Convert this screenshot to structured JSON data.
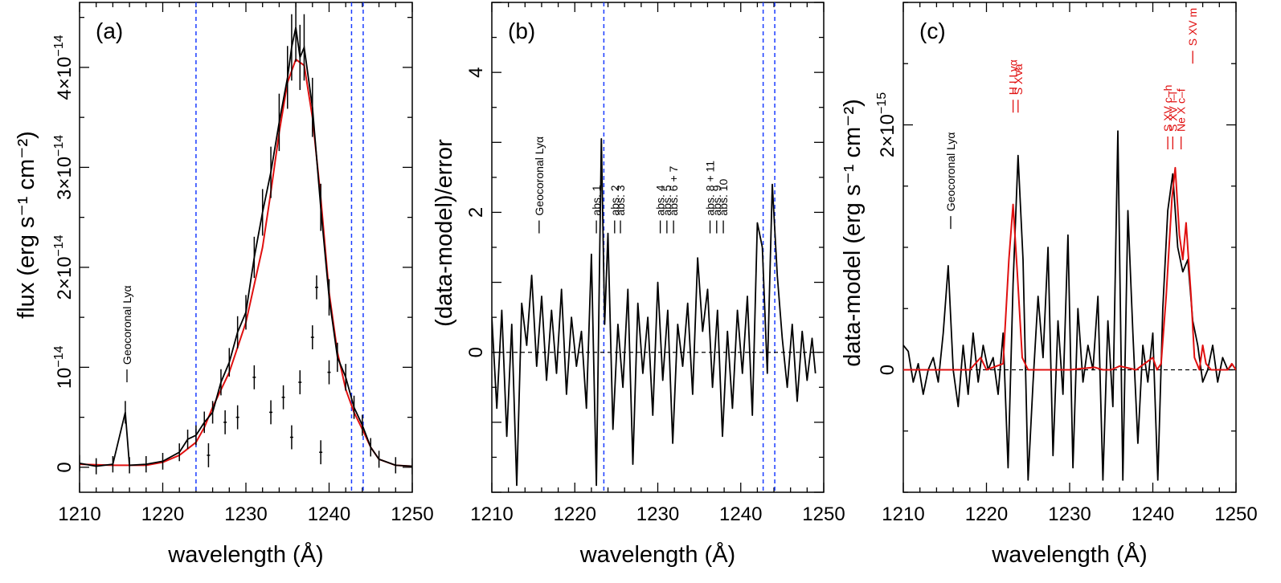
{
  "colors": {
    "data": "#000000",
    "model": "#e01010",
    "marker": "#1a3cff"
  },
  "chart_data": [
    {
      "type": "line",
      "panel": "(a)",
      "xlabel": "wavelength (Å)",
      "ylabel": "flux (erg s⁻¹ cm⁻²)",
      "xlim": [
        1210,
        1250
      ],
      "ylim": [
        -0.25,
        4.65
      ],
      "y_unit_note": "values in units of 1e-14",
      "xticks": [
        1210,
        1220,
        1230,
        1240,
        1250
      ],
      "yticks": [
        {
          "value": 0,
          "mant": "0",
          "exp": ""
        },
        {
          "value": 1,
          "mant": "10",
          "exp": "−14"
        },
        {
          "value": 2,
          "mant": "2×10",
          "exp": "−14"
        },
        {
          "value": 3,
          "mant": "3×10",
          "exp": "−14"
        },
        {
          "value": 4,
          "mant": "4×10",
          "exp": "−14"
        }
      ],
      "dashed_x": [
        1224.0,
        1242.7,
        1244.1
      ],
      "series": [
        {
          "name": "model",
          "color": "#e01010",
          "x": [
            1210,
            1214,
            1218,
            1220,
            1222,
            1224,
            1225,
            1226,
            1228,
            1230,
            1232,
            1233,
            1234,
            1235,
            1236,
            1237,
            1238,
            1239,
            1240,
            1241,
            1242,
            1243,
            1244,
            1245,
            1246,
            1248,
            1250
          ],
          "y": [
            0.03,
            0.02,
            0.02,
            0.05,
            0.12,
            0.25,
            0.4,
            0.6,
            0.95,
            1.45,
            2.2,
            2.75,
            3.35,
            3.85,
            4.08,
            4.02,
            3.5,
            2.7,
            1.75,
            1.15,
            0.78,
            0.55,
            0.38,
            0.2,
            0.08,
            0.02,
            0.01
          ]
        },
        {
          "name": "data",
          "color": "#000000",
          "x": [
            1210,
            1212,
            1214,
            1215.5,
            1216,
            1218,
            1220,
            1222,
            1223,
            1224,
            1225,
            1226,
            1227,
            1228,
            1229,
            1230,
            1231,
            1232,
            1233,
            1234,
            1235,
            1235.5,
            1236,
            1236.5,
            1237,
            1238,
            1239,
            1240,
            1241,
            1242,
            1243,
            1244,
            1245,
            1246,
            1248,
            1250
          ],
          "y": [
            0.04,
            0.01,
            0.03,
            0.55,
            0.02,
            0.03,
            0.06,
            0.15,
            0.28,
            0.32,
            0.45,
            0.55,
            0.85,
            1.05,
            1.35,
            1.55,
            2.1,
            2.55,
            2.95,
            3.45,
            3.9,
            4.2,
            4.4,
            4.1,
            4.2,
            3.6,
            2.6,
            1.7,
            1.1,
            0.9,
            0.6,
            0.42,
            0.2,
            0.08,
            0.02,
            0.01
          ]
        }
      ],
      "outliers": [
        {
          "x": 1225.5,
          "y": 0.12
        },
        {
          "x": 1227.5,
          "y": 0.45
        },
        {
          "x": 1229,
          "y": 0.5
        },
        {
          "x": 1231,
          "y": 0.9
        },
        {
          "x": 1233,
          "y": 0.55
        },
        {
          "x": 1234.5,
          "y": 0.7
        },
        {
          "x": 1235.5,
          "y": 0.3
        },
        {
          "x": 1236.5,
          "y": 0.85
        },
        {
          "x": 1238,
          "y": 1.3
        },
        {
          "x": 1238.5,
          "y": 1.8
        },
        {
          "x": 1239,
          "y": 0.15
        },
        {
          "x": 1240,
          "y": 0.95
        }
      ],
      "annotations": [
        {
          "x": 1215.7,
          "y": 0.85,
          "text": "Geocoronal Lyα"
        }
      ]
    },
    {
      "type": "line",
      "panel": "(b)",
      "xlabel": "wavelength (Å)",
      "ylabel": "(data-model)/error",
      "xlim": [
        1210,
        1250
      ],
      "ylim": [
        -2,
        5
      ],
      "xticks": [
        1210,
        1220,
        1230,
        1240,
        1250
      ],
      "yticks": [
        0,
        2,
        4
      ],
      "zero_line": true,
      "dashed_x": [
        1223.5,
        1242.7,
        1244.1
      ],
      "series": [
        {
          "name": "residual",
          "color": "#000000",
          "x": [
            1210,
            1210.6,
            1211.2,
            1211.8,
            1212.4,
            1213,
            1213.6,
            1214.2,
            1214.8,
            1215.4,
            1216,
            1216.6,
            1217.2,
            1217.8,
            1218.4,
            1219,
            1219.6,
            1220.2,
            1220.8,
            1221.4,
            1222,
            1222.6,
            1223.2,
            1223.6,
            1224,
            1224.6,
            1225.2,
            1225.8,
            1226.4,
            1227,
            1227.6,
            1228.2,
            1228.8,
            1229.4,
            1230,
            1230.6,
            1231.2,
            1231.8,
            1232.4,
            1233,
            1233.6,
            1234.2,
            1234.8,
            1235.4,
            1236,
            1236.6,
            1237.2,
            1237.8,
            1238.4,
            1239,
            1239.6,
            1240.2,
            1240.8,
            1241.4,
            1242,
            1242.6,
            1243.2,
            1243.8,
            1244.4,
            1245,
            1245.6,
            1246.2,
            1246.8,
            1247.4,
            1248,
            1248.6,
            1249
          ],
          "y": [
            0.5,
            -0.8,
            0.6,
            -1.2,
            0.4,
            -1.9,
            0.7,
            0.1,
            1.1,
            -0.2,
            0.8,
            -0.4,
            0.6,
            -0.3,
            0.9,
            -0.6,
            0.5,
            -0.2,
            0.3,
            -0.8,
            1.4,
            -1.9,
            3.05,
            0.4,
            1.7,
            -1.1,
            0.4,
            -0.5,
            0.9,
            -1.6,
            0.7,
            -0.3,
            0.5,
            -0.9,
            1.0,
            -0.4,
            0.6,
            -1.3,
            0.4,
            -0.2,
            0.7,
            -0.6,
            1.35,
            0.3,
            0.9,
            -0.5,
            0.6,
            -1.2,
            0.3,
            -0.8,
            0.6,
            -0.3,
            0.8,
            -0.9,
            1.85,
            1.5,
            -0.3,
            2.4,
            1.1,
            0.2,
            -0.5,
            0.4,
            -0.7,
            0.3,
            -0.4,
            0.2,
            -0.3
          ]
        }
      ],
      "annotations": [
        {
          "x": 1215.7,
          "y": 1.7,
          "text": "Geocoronal Lyα"
        },
        {
          "x": 1222.6,
          "y": 1.7,
          "text": "abs. 1"
        },
        {
          "x": 1224.8,
          "y": 1.7,
          "text": "abs. 2"
        },
        {
          "x": 1225.5,
          "y": 1.7,
          "text": "abs. 3"
        },
        {
          "x": 1230.3,
          "y": 1.7,
          "text": "abs. 4"
        },
        {
          "x": 1231.1,
          "y": 1.7,
          "text": "abs. 5"
        },
        {
          "x": 1231.9,
          "y": 1.7,
          "text": "abs. 6 + 7"
        },
        {
          "x": 1236.3,
          "y": 1.7,
          "text": "abs. 8 + 11"
        },
        {
          "x": 1237.1,
          "y": 1.7,
          "text": "abs. 9"
        },
        {
          "x": 1237.9,
          "y": 1.7,
          "text": "abs. 10"
        }
      ]
    },
    {
      "type": "line",
      "panel": "(c)",
      "xlabel": "wavelength (Å)",
      "ylabel": "data-model (erg s⁻¹ cm⁻²)",
      "xlim": [
        1210,
        1250
      ],
      "ylim": [
        -1.0,
        3.0
      ],
      "y_unit_note": "values in units of 1e-15",
      "xticks": [
        1210,
        1220,
        1230,
        1240,
        1250
      ],
      "yticks": [
        {
          "value": 0,
          "mant": "0",
          "exp": ""
        },
        {
          "value": 2,
          "mant": "2×10",
          "exp": "−15"
        }
      ],
      "zero_line": true,
      "series": [
        {
          "name": "data",
          "color": "#000000",
          "x": [
            1210,
            1210.6,
            1211.2,
            1211.8,
            1212.4,
            1213,
            1213.6,
            1214.2,
            1214.8,
            1215.4,
            1216,
            1216.6,
            1217.2,
            1217.8,
            1218.4,
            1219,
            1219.6,
            1220.2,
            1220.8,
            1221.4,
            1222,
            1222.6,
            1223.2,
            1223.8,
            1224.4,
            1225,
            1225.6,
            1226.2,
            1226.8,
            1227.4,
            1228,
            1228.6,
            1229.2,
            1229.8,
            1230.4,
            1231,
            1231.6,
            1232.2,
            1232.8,
            1233.4,
            1234,
            1234.6,
            1235.2,
            1235.8,
            1236.4,
            1237,
            1237.6,
            1238.2,
            1238.8,
            1239.4,
            1240,
            1240.6,
            1241.2,
            1241.8,
            1242.4,
            1243,
            1243.6,
            1244.2,
            1244.8,
            1245.4,
            1246,
            1246.6,
            1247.2,
            1247.8,
            1248.4,
            1249,
            1249.6
          ],
          "y": [
            0.2,
            0.15,
            -0.1,
            0.05,
            -0.2,
            0.0,
            0.1,
            -0.1,
            0.3,
            0.85,
            0.0,
            -0.3,
            0.2,
            -0.2,
            0.3,
            -0.1,
            0.2,
            0.0,
            0.1,
            -0.2,
            0.3,
            -0.8,
            0.7,
            1.75,
            0.9,
            -0.9,
            -0.1,
            0.6,
            0.1,
            1.0,
            -0.7,
            0.4,
            -0.2,
            1.1,
            -0.8,
            0.5,
            -0.1,
            0.2,
            0.0,
            0.6,
            -0.9,
            0.4,
            -0.3,
            1.95,
            -0.9,
            1.3,
            0.3,
            -0.6,
            0.2,
            -0.1,
            0.3,
            -0.9,
            0.5,
            1.3,
            1.6,
            1.0,
            0.8,
            0.9,
            0.4,
            0.2,
            -0.1,
            0.0,
            0.2,
            -0.1,
            0.1,
            0.0,
            0.05
          ]
        },
        {
          "name": "model",
          "color": "#e01010",
          "x": [
            1210,
            1218,
            1219.3,
            1220,
            1222,
            1222.7,
            1223.2,
            1223.7,
            1224.3,
            1225,
            1230,
            1233,
            1234,
            1235,
            1236,
            1238,
            1240,
            1240.5,
            1241,
            1241.6,
            1242.3,
            1242.7,
            1243.2,
            1243.6,
            1244,
            1244.6,
            1245,
            1245.6,
            1246,
            1246.4,
            1247,
            1249,
            1249.5,
            1250
          ],
          "y": [
            0,
            0.0,
            0.1,
            0.0,
            0.05,
            0.9,
            1.35,
            0.8,
            0.1,
            0.0,
            0.0,
            0.02,
            0.0,
            0.0,
            0.03,
            0.0,
            0.1,
            0.0,
            0.05,
            0.6,
            1.4,
            1.65,
            1.1,
            0.9,
            1.2,
            0.6,
            0.1,
            0.0,
            0.2,
            0.05,
            0.0,
            0.0,
            0.05,
            0.0
          ]
        }
      ],
      "annotations": [
        {
          "x": 1215.7,
          "y": 1.15,
          "text": "Geocoronal Lyα"
        }
      ],
      "line_ids": [
        {
          "x": 1223.2,
          "y": 2.1,
          "text": "H I Lyα"
        },
        {
          "x": 1223.8,
          "y": 2.1,
          "text": "S XVa"
        },
        {
          "x": 1241.8,
          "y": 1.8,
          "text": "S XV c–h"
        },
        {
          "x": 1242.4,
          "y": 1.8,
          "text": "S XV i–l"
        },
        {
          "x": 1243.4,
          "y": 1.8,
          "text": "Ne X c–f"
        },
        {
          "x": 1244.8,
          "y": 2.5,
          "text": "S XV m"
        }
      ]
    }
  ]
}
